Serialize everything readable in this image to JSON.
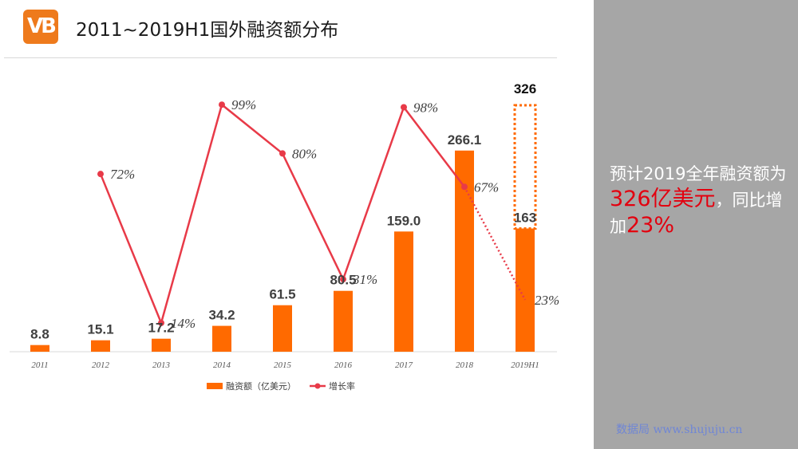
{
  "header": {
    "logo_text": "VB",
    "title": "2011~2019H1国外融资额分布"
  },
  "side_panel": {
    "text_1": "预计2019全年融资额为",
    "highlight_1": "326亿美元",
    "text_2": "，同比增加",
    "highlight_2": "23%",
    "watermark": "数据局 www.shujuju.cn"
  },
  "colors": {
    "bar": "#ff6a00",
    "line": "#e83a48",
    "panel": "#a6a6a6",
    "highlight": "#e3000f"
  },
  "chart_data": {
    "type": "bar",
    "categories": [
      "2011",
      "2012",
      "2013",
      "2014",
      "2015",
      "2016",
      "2017",
      "2018",
      "2019H1"
    ],
    "series": [
      {
        "name": "融资额（亿美元）",
        "type": "bar",
        "values": [
          8.8,
          15.1,
          17.2,
          34.2,
          61.5,
          80.5,
          159.0,
          266.1,
          163
        ],
        "labels": [
          "8.8",
          "15.1",
          "17.2",
          "34.2",
          "61.5",
          "80.5",
          "159.0",
          "266.1",
          "163"
        ]
      },
      {
        "name": "增长率",
        "type": "line",
        "values": [
          null,
          72,
          14,
          99,
          80,
          31,
          98,
          67,
          23
        ],
        "labels": [
          "",
          "72%",
          "14%",
          "99%",
          "80%",
          "31%",
          "98%",
          "67%",
          "23%"
        ]
      }
    ],
    "forecast": {
      "category": "2019H1",
      "value": 326,
      "label": "326"
    },
    "y_bar_range": [
      0,
      326
    ],
    "y_line_range": [
      0,
      100
    ],
    "legend_position": "bottom"
  }
}
